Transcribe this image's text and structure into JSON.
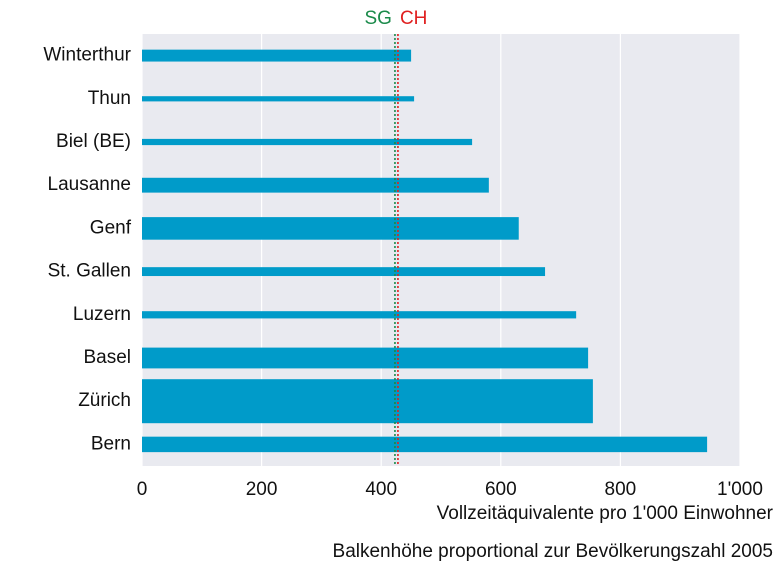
{
  "chart_data": {
    "type": "bar",
    "orientation": "horizontal",
    "xlabel": "Vollzeitäquivalente pro 1'000 Einwohner",
    "note": "Balkenhöhe proportional zur Bevölkerungszahl 2005",
    "categories": [
      "Winterthur",
      "Thun",
      "Biel (BE)",
      "Lausanne",
      "Genf",
      "St. Gallen",
      "Luzern",
      "Basel",
      "Zürich",
      "Bern"
    ],
    "values": [
      450,
      455,
      552,
      580,
      630,
      674,
      726,
      746,
      754,
      945
    ],
    "population": [
      94000,
      41000,
      49000,
      117000,
      178000,
      70000,
      57000,
      164000,
      347000,
      122000
    ],
    "color": "#009bc9",
    "xlim": [
      0,
      1000
    ],
    "xticks": [
      0,
      200,
      400,
      600,
      800,
      {
        "value": 1000,
        "label": "1'000"
      }
    ],
    "grid": true,
    "reference_lines": [
      {
        "name": "SG",
        "value": 423,
        "color": "#1a8a4a"
      },
      {
        "name": "CH",
        "value": 428,
        "color": "#e02020"
      }
    ]
  }
}
